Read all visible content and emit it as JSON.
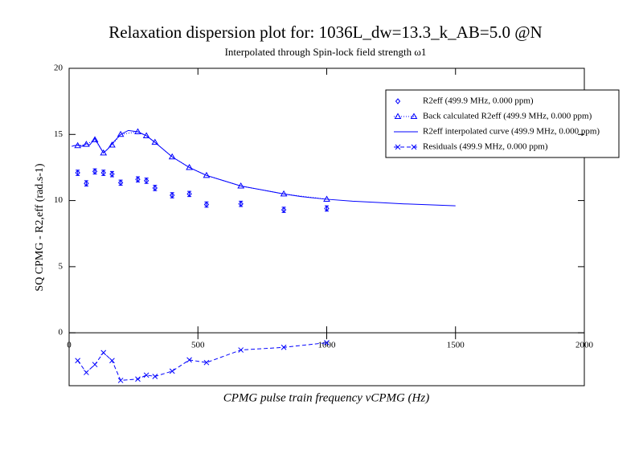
{
  "chart_data": {
    "type": "line",
    "title": "Relaxation dispersion plot for: 1036L_dw=13.3_k_AB=5.0 @N",
    "subtitle": "Interpolated through Spin-lock field strength ω1",
    "x_label": "CPMG pulse train frequency νCPMG (Hz)",
    "y_label": "SQ CPMG - R2,eff (rad.s-1)",
    "xlim": [
      0,
      2000
    ],
    "xticks": [
      0,
      500,
      1000,
      1500,
      2000
    ],
    "ylim": [
      -4,
      20
    ],
    "yticks": [
      0,
      5,
      10,
      15,
      20
    ],
    "series": [
      {
        "name": "R2eff (499.9 MHz, 0.000 ppm)",
        "color": "#0000ff",
        "marker": "diamond",
        "line": "none",
        "x": [
          33.3,
          66.7,
          100,
          133.3,
          166.7,
          200,
          266.7,
          300,
          333.3,
          400,
          466.7,
          533.3,
          666.7,
          833.3,
          1000
        ],
        "values": [
          12.1,
          11.3,
          12.2,
          12.1,
          12.0,
          11.35,
          11.6,
          11.5,
          10.95,
          10.4,
          10.5,
          9.7,
          9.75,
          9.3,
          9.4
        ],
        "errors": [
          0.2,
          0.2,
          0.2,
          0.2,
          0.2,
          0.2,
          0.2,
          0.2,
          0.2,
          0.2,
          0.2,
          0.2,
          0.2,
          0.2,
          0.2
        ]
      },
      {
        "name": "Back calculated R2eff (499.9 MHz, 0.000 ppm)",
        "color": "#0000ff",
        "marker": "triangle",
        "line": "dotted",
        "x": [
          33.3,
          66.7,
          100,
          133.3,
          166.7,
          200,
          266.7,
          300,
          333.3,
          400,
          466.7,
          533.3,
          666.7,
          833.3,
          1000
        ],
        "values": [
          14.15,
          14.25,
          14.6,
          13.6,
          14.2,
          15.0,
          15.2,
          14.9,
          14.4,
          13.3,
          12.5,
          11.9,
          11.1,
          10.5,
          10.1
        ]
      },
      {
        "name": "R2eff interpolated curve (499.9 MHz, 0.000 ppm)",
        "color": "#0000ff",
        "marker": "none",
        "line": "solid",
        "x": [
          10,
          20,
          33.3,
          50,
          66.7,
          80,
          100,
          115,
          133.3,
          150,
          166.7,
          200,
          230,
          266.7,
          300,
          333.3,
          400,
          466.7,
          533.3,
          600,
          666.7,
          750,
          833.3,
          900,
          1000,
          1100,
          1200,
          1300,
          1400,
          1500
        ],
        "values": [
          14.1,
          14.15,
          14.2,
          14.1,
          14.3,
          14.2,
          14.7,
          14.2,
          13.6,
          13.9,
          14.3,
          15.0,
          15.3,
          15.2,
          14.9,
          14.4,
          13.3,
          12.5,
          11.9,
          11.5,
          11.1,
          10.8,
          10.5,
          10.3,
          10.1,
          9.95,
          9.85,
          9.75,
          9.68,
          9.6
        ]
      },
      {
        "name": "Residuals (499.9 MHz, 0.000 ppm)",
        "color": "#0000ff",
        "marker": "x",
        "line": "dashed",
        "x": [
          33.3,
          66.7,
          100,
          133.3,
          166.7,
          200,
          266.7,
          300,
          333.3,
          400,
          466.7,
          533.3,
          666.7,
          833.3,
          1000
        ],
        "values": [
          -2.1,
          -3.0,
          -2.4,
          -1.5,
          -2.1,
          -3.6,
          -3.5,
          -3.2,
          -3.3,
          -2.9,
          -2.05,
          -2.25,
          -1.3,
          -1.1,
          -0.75
        ]
      }
    ]
  }
}
